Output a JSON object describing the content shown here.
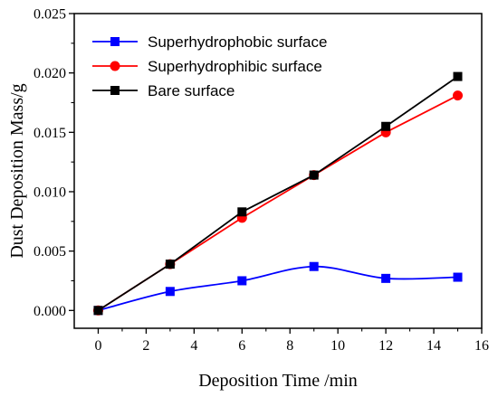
{
  "chart_data": {
    "type": "line",
    "xlabel": "Deposition Time /min",
    "ylabel": "Dust Deposition Mass/g",
    "xlim": [
      -1,
      16
    ],
    "ylim": [
      -0.0015,
      0.025
    ],
    "x_ticks": [
      0,
      2,
      4,
      6,
      8,
      10,
      12,
      14,
      16
    ],
    "y_ticks": [
      0.0,
      0.005,
      0.01,
      0.015,
      0.02,
      0.025
    ],
    "x_tick_labels": [
      "0",
      "2",
      "4",
      "6",
      "8",
      "10",
      "12",
      "14",
      "16"
    ],
    "y_tick_labels": [
      "0.000",
      "0.005",
      "0.010",
      "0.015",
      "0.020",
      "0.025"
    ],
    "x": [
      0,
      3,
      6,
      9,
      12,
      15
    ],
    "grid": false,
    "legend_position": "top-left",
    "series": [
      {
        "name": "Superhydrophobic surface",
        "color": "#0000ff",
        "marker": "square",
        "smooth": true,
        "values": [
          0.0,
          0.0016,
          0.0025,
          0.0037,
          0.0027,
          0.0028
        ]
      },
      {
        "name": "Superhydrophibic surface",
        "color": "#ff0000",
        "marker": "circle",
        "smooth": false,
        "values": [
          0.0,
          0.0039,
          0.0078,
          0.0114,
          0.015,
          0.0181
        ]
      },
      {
        "name": "Bare surface",
        "color": "#000000",
        "marker": "square",
        "smooth": false,
        "values": [
          0.0,
          0.0039,
          0.0083,
          0.0114,
          0.0155,
          0.0197
        ]
      }
    ]
  }
}
